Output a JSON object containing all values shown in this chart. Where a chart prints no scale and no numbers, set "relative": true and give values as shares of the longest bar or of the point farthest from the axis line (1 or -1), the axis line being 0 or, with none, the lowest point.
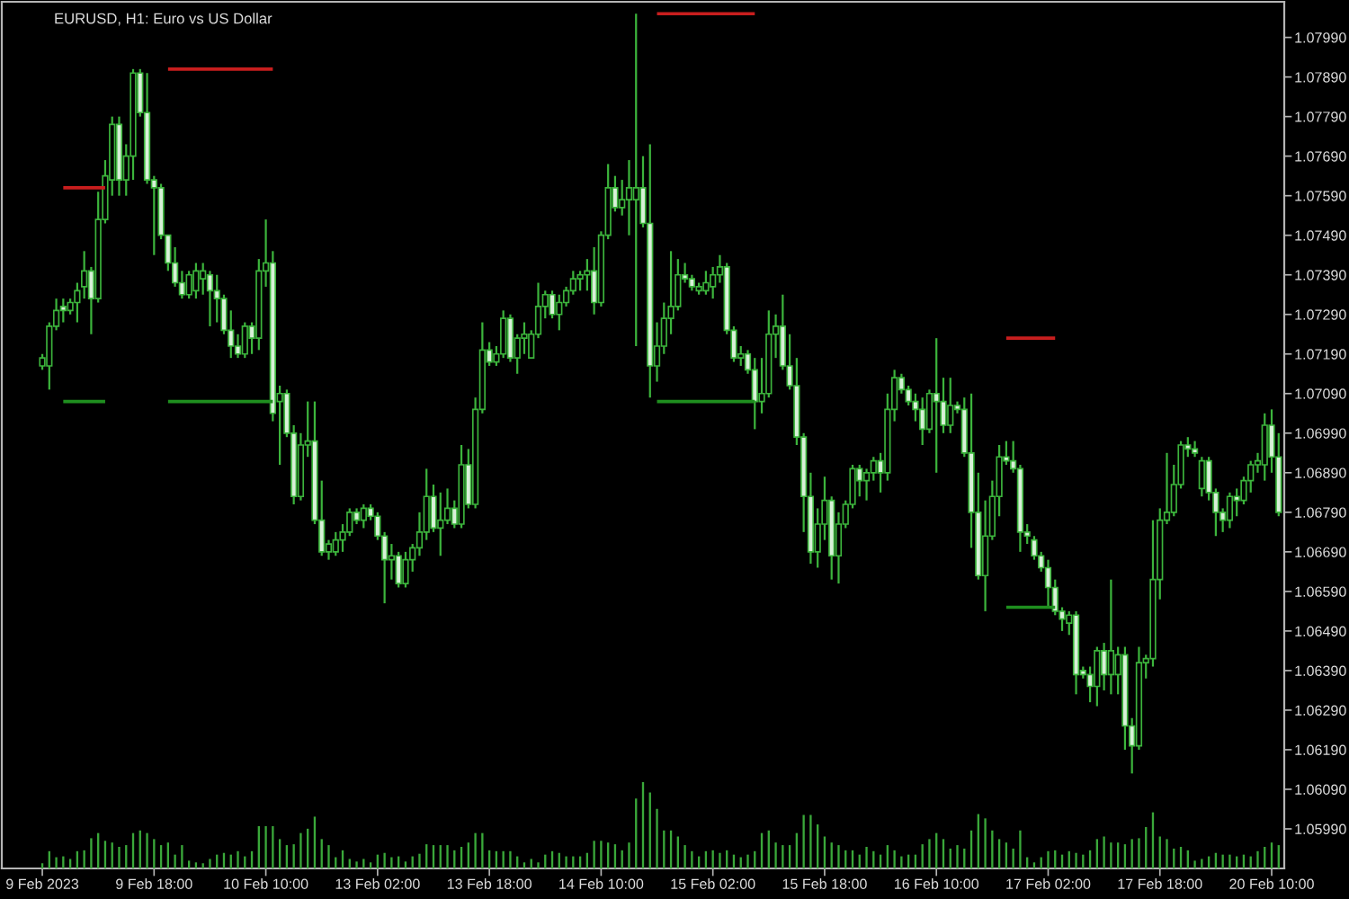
{
  "chart_data": [
    {
      "type": "candlestick",
      "title": "EURUSD, H1: Euro vs US Dollar",
      "color": "#3cb43c",
      "categories": [
        "9 Feb 2023",
        null,
        null,
        null,
        null,
        null,
        null,
        null,
        null,
        null,
        null,
        null,
        null,
        null,
        null,
        null,
        "9 Feb 18:00",
        null,
        null,
        null,
        null,
        null,
        null,
        null,
        null,
        null,
        null,
        null,
        null,
        null,
        null,
        null,
        "10 Feb 10:00",
        null,
        null,
        null,
        null,
        null,
        null,
        null,
        null,
        null,
        null,
        null,
        null,
        null,
        null,
        null,
        "13 Feb 02:00",
        null,
        null,
        null,
        null,
        null,
        null,
        null,
        null,
        null,
        null,
        null,
        null,
        null,
        null,
        null,
        "13 Feb 18:00",
        null,
        null,
        null,
        null,
        null,
        null,
        null,
        null,
        null,
        null,
        null,
        null,
        null,
        null,
        null,
        "14 Feb 10:00",
        null,
        null,
        null,
        null,
        null,
        null,
        null,
        null,
        null,
        null,
        null,
        null,
        null,
        null,
        null,
        "15 Feb 02:00",
        null,
        null,
        null,
        null,
        null,
        null,
        null,
        null,
        null,
        null,
        null,
        null,
        null,
        null,
        null,
        "15 Feb 18:00",
        null,
        null,
        null,
        null,
        null,
        null,
        null,
        null,
        null,
        null,
        null,
        null,
        null,
        null,
        null,
        "16 Feb 10:00",
        null,
        null,
        null,
        null,
        null,
        null,
        null,
        null,
        null,
        null,
        null,
        null,
        null,
        null,
        null,
        "17 Feb 02:00",
        null,
        null,
        null,
        null,
        null,
        null,
        null,
        null,
        null,
        null,
        null,
        null,
        null,
        null,
        null,
        "17 Feb 18:00",
        null,
        null,
        null,
        null,
        null,
        null,
        null,
        null,
        null,
        null,
        null,
        null,
        null,
        null,
        null,
        "20 Feb 10:00",
        null
      ],
      "ohlc": [
        [
          1.0716,
          1.0719,
          1.0715,
          1.0718
        ],
        [
          1.0716,
          1.0727,
          1.071,
          1.0726
        ],
        [
          1.0726,
          1.0733,
          1.0725,
          1.073
        ],
        [
          1.0731,
          1.0733,
          1.0727,
          1.073
        ],
        [
          1.073,
          1.0733,
          1.0729,
          1.0732
        ],
        [
          1.0732,
          1.0737,
          1.0727,
          1.0735
        ],
        [
          1.0736,
          1.0745,
          1.0733,
          1.074
        ],
        [
          1.074,
          1.0741,
          1.0724,
          1.0733
        ],
        [
          1.0733,
          1.076,
          1.0732,
          1.0753
        ],
        [
          1.0753,
          1.0768,
          1.0752,
          1.0764
        ],
        [
          1.0763,
          1.0779,
          1.0759,
          1.0777
        ],
        [
          1.0777,
          1.0779,
          1.0759,
          1.0763
        ],
        [
          1.0763,
          1.0772,
          1.0759,
          1.0769
        ],
        [
          1.0769,
          1.0791,
          1.0763,
          1.079
        ],
        [
          1.079,
          1.0791,
          1.0779,
          1.078
        ],
        [
          1.078,
          1.079,
          1.0762,
          1.0763
        ],
        [
          1.0763,
          1.0764,
          1.0744,
          1.0761
        ],
        [
          1.0761,
          1.0762,
          1.0748,
          1.0749
        ],
        [
          1.0749,
          1.0749,
          1.074,
          1.0742
        ],
        [
          1.0742,
          1.0746,
          1.0736,
          1.0737
        ],
        [
          1.0737,
          1.074,
          1.0733,
          1.0734
        ],
        [
          1.0734,
          1.074,
          1.0733,
          1.0739
        ],
        [
          1.0735,
          1.0742,
          1.0733,
          1.074
        ],
        [
          1.0738,
          1.0742,
          1.0734,
          1.074
        ],
        [
          1.0739,
          1.074,
          1.0726,
          1.0735
        ],
        [
          1.0735,
          1.0739,
          1.0727,
          1.0733
        ],
        [
          1.0733,
          1.0734,
          1.0724,
          1.0725
        ],
        [
          1.0725,
          1.073,
          1.0718,
          1.0721
        ],
        [
          1.0721,
          1.0724,
          1.0718,
          1.0719
        ],
        [
          1.0719,
          1.0727,
          1.0718,
          1.0726
        ],
        [
          1.0726,
          1.0727,
          1.0719,
          1.0723
        ],
        [
          1.0723,
          1.0743,
          1.072,
          1.074
        ],
        [
          1.074,
          1.0753,
          1.0736,
          1.0742
        ],
        [
          1.0742,
          1.0745,
          1.0702,
          1.0704
        ],
        [
          1.0707,
          1.0711,
          1.0691,
          1.0709
        ],
        [
          1.0709,
          1.071,
          1.0698,
          1.0699
        ],
        [
          1.0699,
          1.0701,
          1.0681,
          1.0683
        ],
        [
          1.0683,
          1.0699,
          1.0682,
          1.0696
        ],
        [
          1.0696,
          1.0707,
          1.0693,
          1.0697
        ],
        [
          1.0697,
          1.0707,
          1.0676,
          1.0677
        ],
        [
          1.0677,
          1.0687,
          1.0668,
          1.0669
        ],
        [
          1.0669,
          1.0672,
          1.0667,
          1.0671
        ],
        [
          1.0669,
          1.0674,
          1.0668,
          1.0672
        ],
        [
          1.0672,
          1.0676,
          1.0669,
          1.0674
        ],
        [
          1.0674,
          1.068,
          1.0673,
          1.0679
        ],
        [
          1.0679,
          1.068,
          1.0676,
          1.0677
        ],
        [
          1.0677,
          1.0681,
          1.0675,
          1.068
        ],
        [
          1.068,
          1.0681,
          1.0677,
          1.0678
        ],
        [
          1.0678,
          1.0679,
          1.0672,
          1.0673
        ],
        [
          1.0673,
          1.0674,
          1.0656,
          1.0667
        ],
        [
          1.0667,
          1.0671,
          1.0662,
          1.0668
        ],
        [
          1.0668,
          1.0669,
          1.066,
          1.0661
        ],
        [
          1.0661,
          1.0669,
          1.066,
          1.0667
        ],
        [
          1.0667,
          1.0671,
          1.0664,
          1.067
        ],
        [
          1.067,
          1.0679,
          1.0668,
          1.0674
        ],
        [
          1.0674,
          1.069,
          1.0672,
          1.0683
        ],
        [
          1.0683,
          1.0686,
          1.0674,
          1.0675
        ],
        [
          1.0675,
          1.0684,
          1.0668,
          1.0677
        ],
        [
          1.0677,
          1.0685,
          1.0676,
          1.068
        ],
        [
          1.068,
          1.0682,
          1.0675,
          1.0676
        ],
        [
          1.0676,
          1.0696,
          1.0675,
          1.0691
        ],
        [
          1.0691,
          1.0695,
          1.068,
          1.0681
        ],
        [
          1.0681,
          1.0708,
          1.068,
          1.0705
        ],
        [
          1.0705,
          1.0727,
          1.0704,
          1.072
        ],
        [
          1.072,
          1.0722,
          1.0716,
          1.0717
        ],
        [
          1.0717,
          1.0721,
          1.0716,
          1.0719
        ],
        [
          1.0719,
          1.073,
          1.0718,
          1.0728
        ],
        [
          1.0728,
          1.0729,
          1.0717,
          1.0718
        ],
        [
          1.0718,
          1.0724,
          1.0714,
          1.0723
        ],
        [
          1.0723,
          1.0727,
          1.0719,
          1.0724
        ],
        [
          1.0718,
          1.0725,
          1.0718,
          1.0724
        ],
        [
          1.0724,
          1.0737,
          1.0723,
          1.0731
        ],
        [
          1.0731,
          1.0735,
          1.0728,
          1.0734
        ],
        [
          1.0734,
          1.0735,
          1.0728,
          1.0729
        ],
        [
          1.0729,
          1.0734,
          1.0725,
          1.0732
        ],
        [
          1.0732,
          1.0736,
          1.0731,
          1.0735
        ],
        [
          1.0735,
          1.074,
          1.0734,
          1.0738
        ],
        [
          1.0738,
          1.074,
          1.0735,
          1.0739
        ],
        [
          1.0739,
          1.0743,
          1.0735,
          1.074
        ],
        [
          1.074,
          1.0746,
          1.0729,
          1.0732
        ],
        [
          1.0732,
          1.075,
          1.0731,
          1.0749
        ],
        [
          1.0749,
          1.0767,
          1.0748,
          1.0761
        ],
        [
          1.0761,
          1.0764,
          1.0755,
          1.0756
        ],
        [
          1.0756,
          1.0763,
          1.0754,
          1.0758
        ],
        [
          1.0758,
          1.0768,
          1.0749,
          1.0761
        ],
        [
          1.0758,
          1.0805,
          1.0721,
          1.0761
        ],
        [
          1.0761,
          1.0769,
          1.0751,
          1.0752
        ],
        [
          1.0752,
          1.0772,
          1.0708,
          1.0716
        ],
        [
          1.0716,
          1.0727,
          1.0712,
          1.0721
        ],
        [
          1.0721,
          1.0732,
          1.0719,
          1.0728
        ],
        [
          1.0728,
          1.0745,
          1.0724,
          1.0731
        ],
        [
          1.0731,
          1.0743,
          1.073,
          1.0739
        ],
        [
          1.0739,
          1.0742,
          1.0737,
          1.0738
        ],
        [
          1.0738,
          1.0739,
          1.0735,
          1.0736
        ],
        [
          1.0735,
          1.0737,
          1.0734,
          1.0736
        ],
        [
          1.0735,
          1.074,
          1.0734,
          1.0737
        ],
        [
          1.0736,
          1.0741,
          1.0733,
          1.0739
        ],
        [
          1.0739,
          1.0744,
          1.0737,
          1.0741
        ],
        [
          1.0741,
          1.0742,
          1.0724,
          1.0725
        ],
        [
          1.0725,
          1.0726,
          1.0717,
          1.0718
        ],
        [
          1.0718,
          1.0721,
          1.0716,
          1.0719
        ],
        [
          1.0719,
          1.072,
          1.0714,
          1.0715
        ],
        [
          1.0715,
          1.0718,
          1.07,
          1.0707
        ],
        [
          1.0707,
          1.0718,
          1.0704,
          1.0709
        ],
        [
          1.0709,
          1.073,
          1.0708,
          1.0724
        ],
        [
          1.0724,
          1.0729,
          1.0718,
          1.0726
        ],
        [
          1.0726,
          1.0734,
          1.0715,
          1.0716
        ],
        [
          1.0716,
          1.0724,
          1.071,
          1.0711
        ],
        [
          1.0711,
          1.0718,
          1.0696,
          1.0698
        ],
        [
          1.0698,
          1.0699,
          1.0674,
          1.0683
        ],
        [
          1.0683,
          1.0689,
          1.0666,
          1.0669
        ],
        [
          1.0669,
          1.068,
          1.0665,
          1.0676
        ],
        [
          1.0676,
          1.0688,
          1.0672,
          1.0682
        ],
        [
          1.0682,
          1.0683,
          1.0662,
          1.0668
        ],
        [
          1.0668,
          1.0679,
          1.0661,
          1.0676
        ],
        [
          1.0676,
          1.0682,
          1.0675,
          1.0681
        ],
        [
          1.0681,
          1.0691,
          1.068,
          1.069
        ],
        [
          1.069,
          1.0691,
          1.0683,
          1.0687
        ],
        [
          1.0687,
          1.069,
          1.0682,
          1.0689
        ],
        [
          1.0689,
          1.0693,
          1.0687,
          1.0692
        ],
        [
          1.0692,
          1.0694,
          1.0684,
          1.0689
        ],
        [
          1.0689,
          1.0709,
          1.0687,
          1.0705
        ],
        [
          1.0705,
          1.0715,
          1.0702,
          1.0713
        ],
        [
          1.0713,
          1.0714,
          1.0709,
          1.071
        ],
        [
          1.071,
          1.0711,
          1.0706,
          1.0707
        ],
        [
          1.0707,
          1.0709,
          1.0702,
          1.0705
        ],
        [
          1.0705,
          1.0708,
          1.0696,
          1.07
        ],
        [
          1.07,
          1.071,
          1.0699,
          1.0709
        ],
        [
          1.0709,
          1.0723,
          1.0689,
          1.0707
        ],
        [
          1.0707,
          1.0713,
          1.0699,
          1.0701
        ],
        [
          1.0701,
          1.0713,
          1.0699,
          1.0706
        ],
        [
          1.0706,
          1.0707,
          1.0704,
          1.0705
        ],
        [
          1.0705,
          1.0708,
          1.0693,
          1.0694
        ],
        [
          1.0694,
          1.0709,
          1.067,
          1.0679
        ],
        [
          1.0679,
          1.0689,
          1.0662,
          1.0663
        ],
        [
          1.0663,
          1.0682,
          1.0654,
          1.0673
        ],
        [
          1.0673,
          1.0687,
          1.0672,
          1.0683
        ],
        [
          1.0683,
          1.0696,
          1.0678,
          1.0693
        ],
        [
          1.0693,
          1.0697,
          1.0691,
          1.0692
        ],
        [
          1.0692,
          1.0697,
          1.0689,
          1.069
        ],
        [
          1.069,
          1.0691,
          1.0669,
          1.0674
        ],
        [
          1.0674,
          1.0676,
          1.0671,
          1.0673
        ],
        [
          1.0672,
          1.0673,
          1.0667,
          1.0668
        ],
        [
          1.0668,
          1.0669,
          1.0664,
          1.0665
        ],
        [
          1.0665,
          1.0667,
          1.0655,
          1.066
        ],
        [
          1.066,
          1.0662,
          1.0653,
          1.0654
        ],
        [
          1.0654,
          1.0655,
          1.0649,
          1.0652
        ],
        [
          1.0651,
          1.0654,
          1.0648,
          1.0653
        ],
        [
          1.0653,
          1.0654,
          1.0633,
          1.0638
        ],
        [
          1.0639,
          1.064,
          1.0637,
          1.0638
        ],
        [
          1.0638,
          1.064,
          1.0631,
          1.0635
        ],
        [
          1.0635,
          1.0645,
          1.063,
          1.0644
        ],
        [
          1.0644,
          1.0646,
          1.0634,
          1.0638
        ],
        [
          1.0638,
          1.0662,
          1.0633,
          1.0644
        ],
        [
          1.0638,
          1.0645,
          1.0633,
          1.0643
        ],
        [
          1.0643,
          1.0645,
          1.0619,
          1.0625
        ],
        [
          1.0625,
          1.0627,
          1.0613,
          1.062
        ],
        [
          1.062,
          1.0645,
          1.0619,
          1.0641
        ],
        [
          1.0641,
          1.0643,
          1.0637,
          1.0642
        ],
        [
          1.0642,
          1.0677,
          1.064,
          1.0662
        ],
        [
          1.0662,
          1.068,
          1.0657,
          1.0677
        ],
        [
          1.0677,
          1.0694,
          1.0676,
          1.0679
        ],
        [
          1.0679,
          1.0691,
          1.0678,
          1.0686
        ],
        [
          1.0686,
          1.0697,
          1.0685,
          1.0696
        ],
        [
          1.0696,
          1.0698,
          1.0693,
          1.0695
        ],
        [
          1.0695,
          1.0697,
          1.0693,
          1.0694
        ],
        [
          1.0685,
          1.0693,
          1.0683,
          1.0692
        ],
        [
          1.0692,
          1.0693,
          1.0682,
          1.0684
        ],
        [
          1.0684,
          1.0685,
          1.0673,
          1.0679
        ],
        [
          1.0679,
          1.068,
          1.0674,
          1.0677
        ],
        [
          1.0677,
          1.0684,
          1.0675,
          1.0683
        ],
        [
          1.0683,
          1.0685,
          1.0678,
          1.0682
        ],
        [
          1.0682,
          1.0688,
          1.0681,
          1.0687
        ],
        [
          1.0687,
          1.0692,
          1.0684,
          1.0691
        ],
        [
          1.0691,
          1.0694,
          1.0689,
          1.0692
        ],
        [
          1.0691,
          1.0704,
          1.0687,
          1.0701
        ],
        [
          1.0701,
          1.0705,
          1.0689,
          1.0693
        ],
        [
          1.0693,
          1.0699,
          1.0678,
          1.0679
        ]
      ],
      "series": [
        {
          "type": "line",
          "color": "#c81e1e",
          "values": [
            null,
            null,
            null,
            1.0761,
            1.0761,
            1.0761,
            1.0761,
            1.0761,
            1.0761,
            1.0761,
            null,
            null,
            null,
            null,
            null,
            null,
            null,
            null,
            1.0791,
            1.0791,
            1.0791,
            1.0791,
            1.0791,
            1.0791,
            1.0791,
            1.0791,
            1.0791,
            1.0791,
            1.0791,
            1.0791,
            1.0791,
            1.0791,
            1.0791,
            1.0791,
            null,
            null,
            null,
            null,
            null,
            null,
            null,
            null,
            null,
            null,
            null,
            null,
            null,
            null,
            null,
            null,
            null,
            null,
            null,
            null,
            null,
            null,
            null,
            null,
            null,
            null,
            null,
            null,
            null,
            null,
            null,
            null,
            null,
            null,
            null,
            null,
            null,
            null,
            null,
            null,
            null,
            null,
            null,
            null,
            null,
            null,
            null,
            null,
            null,
            null,
            null,
            null,
            null,
            null,
            1.0805,
            1.0805,
            1.0805,
            1.0805,
            1.0805,
            1.0805,
            1.0805,
            1.0805,
            1.0805,
            1.0805,
            1.0805,
            1.0805,
            1.0805,
            1.0805,
            1.0805,
            null,
            null,
            null,
            null,
            null,
            null,
            null,
            null,
            null,
            null,
            null,
            null,
            null,
            null,
            null,
            null,
            null,
            null,
            null,
            null,
            null,
            null,
            null,
            null,
            null,
            null,
            null,
            null,
            null,
            null,
            null,
            null,
            null,
            null,
            null,
            1.0723,
            1.0723,
            1.0723,
            1.0723,
            1.0723,
            1.0723,
            1.0723,
            1.0723,
            null,
            null,
            null,
            null,
            null,
            null,
            null,
            null,
            null,
            null,
            null,
            null,
            null,
            null,
            null,
            null,
            null,
            null,
            null,
            null,
            null,
            null,
            null,
            null,
            null,
            null,
            null,
            null,
            null,
            null,
            null,
            null
          ]
        },
        {
          "type": "line",
          "color": "#1f8f1f",
          "values": [
            null,
            null,
            null,
            1.0707,
            1.0707,
            1.0707,
            1.0707,
            1.0707,
            1.0707,
            1.0707,
            null,
            null,
            null,
            null,
            null,
            null,
            null,
            null,
            1.0707,
            1.0707,
            1.0707,
            1.0707,
            1.0707,
            1.0707,
            1.0707,
            1.0707,
            1.0707,
            1.0707,
            1.0707,
            1.0707,
            1.0707,
            1.0707,
            1.0707,
            1.0707,
            null,
            null,
            null,
            null,
            null,
            null,
            null,
            null,
            null,
            null,
            null,
            null,
            null,
            null,
            null,
            null,
            null,
            null,
            null,
            null,
            null,
            null,
            null,
            null,
            null,
            null,
            null,
            null,
            null,
            null,
            null,
            null,
            null,
            null,
            null,
            null,
            null,
            null,
            null,
            null,
            null,
            null,
            null,
            null,
            null,
            null,
            null,
            null,
            null,
            null,
            null,
            null,
            null,
            null,
            1.0707,
            1.0707,
            1.0707,
            1.0707,
            1.0707,
            1.0707,
            1.0707,
            1.0707,
            1.0707,
            1.0707,
            1.0707,
            1.0707,
            1.0707,
            1.0707,
            1.0707,
            null,
            null,
            null,
            null,
            null,
            null,
            null,
            null,
            null,
            null,
            null,
            null,
            null,
            null,
            null,
            null,
            null,
            null,
            null,
            null,
            null,
            null,
            null,
            null,
            null,
            null,
            null,
            null,
            null,
            null,
            null,
            null,
            null,
            null,
            null,
            1.0655,
            1.0655,
            1.0655,
            1.0655,
            1.0655,
            1.0655,
            1.0655,
            1.0655,
            null,
            null,
            null,
            null,
            null,
            null,
            null,
            null,
            null,
            null,
            null,
            null,
            null,
            null,
            null,
            null,
            null,
            null,
            null,
            null,
            null,
            null,
            null,
            null,
            null,
            null,
            null,
            null,
            null,
            null,
            null,
            null
          ]
        }
      ],
      "ylim": [
        1.0589,
        1.0808
      ],
      "yticks": [
        {
          "value": 1.0599,
          "label": "1.05990"
        },
        {
          "value": 1.0609,
          "label": "1.06090"
        },
        {
          "value": 1.0619,
          "label": "1.06190"
        },
        {
          "value": 1.0629,
          "label": "1.06290"
        },
        {
          "value": 1.0639,
          "label": "1.06390"
        },
        {
          "value": 1.0649,
          "label": "1.06490"
        },
        {
          "value": 1.0659,
          "label": "1.06590"
        },
        {
          "value": 1.0669,
          "label": "1.06690"
        },
        {
          "value": 1.0679,
          "label": "1.06790"
        },
        {
          "value": 1.0689,
          "label": "1.06890"
        },
        {
          "value": 1.0699,
          "label": "1.06990"
        },
        {
          "value": 1.0709,
          "label": "1.07090"
        },
        {
          "value": 1.0719,
          "label": "1.07190"
        },
        {
          "value": 1.0729,
          "label": "1.07290"
        },
        {
          "value": 1.0739,
          "label": "1.07390"
        },
        {
          "value": 1.0749,
          "label": "1.07490"
        },
        {
          "value": 1.0759,
          "label": "1.07590"
        },
        {
          "value": 1.0769,
          "label": "1.07690"
        },
        {
          "value": 1.0779,
          "label": "1.07790"
        },
        {
          "value": 1.0789,
          "label": "1.07890"
        },
        {
          "value": 1.0799,
          "label": "1.07990"
        }
      ]
    },
    {
      "type": "bar",
      "relative": true,
      "color": "#3aa83a",
      "categories": [
        null,
        null,
        null,
        null,
        null,
        null,
        null,
        null,
        null,
        null,
        null,
        null,
        null,
        null,
        null,
        null,
        null,
        null,
        null,
        null,
        null,
        null,
        null,
        null,
        null,
        null,
        null,
        null,
        null,
        null,
        null,
        null,
        null,
        null,
        null,
        null,
        null,
        null,
        null,
        null,
        null,
        null,
        null,
        null,
        null,
        null,
        null,
        null,
        null,
        null,
        null,
        null,
        null,
        null,
        null,
        null,
        null,
        null,
        null,
        null,
        null,
        null,
        null,
        null,
        null,
        null,
        null,
        null,
        null,
        null,
        null,
        null,
        null,
        null,
        null,
        null,
        null,
        null,
        null,
        null,
        null,
        null,
        null,
        null,
        null,
        null,
        null,
        null,
        null,
        null,
        null,
        null,
        null,
        null,
        null,
        null,
        null,
        null,
        null,
        null,
        null,
        null,
        null,
        null,
        null,
        null,
        null,
        null,
        null,
        null,
        null,
        null,
        null,
        null,
        null,
        null,
        null,
        null,
        null,
        null,
        null,
        null,
        null,
        null,
        null,
        null,
        null,
        null,
        null,
        null,
        null,
        null,
        null,
        null,
        null,
        null,
        null,
        null,
        null,
        null,
        null,
        null,
        null,
        null,
        null,
        null,
        null,
        null,
        null,
        null,
        null,
        null,
        null,
        null,
        null,
        null,
        null,
        null,
        null,
        null,
        null,
        null,
        null,
        null,
        null,
        null,
        null,
        null,
        null,
        null,
        null,
        null,
        null,
        null,
        null,
        null,
        null,
        null
      ],
      "values": [
        0.06,
        0.2,
        0.13,
        0.14,
        0.11,
        0.2,
        0.21,
        0.35,
        0.41,
        0.32,
        0.3,
        0.25,
        0.27,
        0.41,
        0.44,
        0.41,
        0.34,
        0.27,
        0.3,
        0.16,
        0.27,
        0.09,
        0.07,
        0.06,
        0.11,
        0.16,
        0.18,
        0.16,
        0.2,
        0.14,
        0.2,
        0.49,
        0.49,
        0.49,
        0.34,
        0.27,
        0.28,
        0.41,
        0.46,
        0.6,
        0.34,
        0.27,
        0.13,
        0.21,
        0.11,
        0.08,
        0.11,
        0.07,
        0.16,
        0.18,
        0.13,
        0.14,
        0.08,
        0.14,
        0.17,
        0.28,
        0.27,
        0.27,
        0.27,
        0.21,
        0.25,
        0.3,
        0.41,
        0.41,
        0.21,
        0.2,
        0.2,
        0.2,
        0.14,
        0.07,
        0.11,
        0.07,
        0.16,
        0.2,
        0.18,
        0.14,
        0.14,
        0.14,
        0.18,
        0.32,
        0.32,
        0.3,
        0.28,
        0.21,
        0.3,
        0.81,
        1,
        0.88,
        0.69,
        0.44,
        0.44,
        0.37,
        0.27,
        0.2,
        0.14,
        0.2,
        0.21,
        0.18,
        0.21,
        0.16,
        0.13,
        0.16,
        0.2,
        0.41,
        0.44,
        0.3,
        0.27,
        0.27,
        0.41,
        0.62,
        0.62,
        0.51,
        0.37,
        0.3,
        0.27,
        0.21,
        0.21,
        0.16,
        0.25,
        0.2,
        0.16,
        0.27,
        0.21,
        0.14,
        0.16,
        0.16,
        0.28,
        0.34,
        0.41,
        0.34,
        0.23,
        0.27,
        0.23,
        0.44,
        0.63,
        0.58,
        0.44,
        0.34,
        0.3,
        0.23,
        0.44,
        0.13,
        0.07,
        0.13,
        0.2,
        0.21,
        0.16,
        0.2,
        0.18,
        0.16,
        0.21,
        0.34,
        0.37,
        0.3,
        0.3,
        0.28,
        0.34,
        0.35,
        0.48,
        0.65,
        0.37,
        0.34,
        0.23,
        0.25,
        0.21,
        0.09,
        0.11,
        0.14,
        0.18,
        0.16,
        0.16,
        0.14,
        0.16,
        0.14,
        0.2,
        0.25,
        0.3,
        0.27
      ]
    }
  ]
}
